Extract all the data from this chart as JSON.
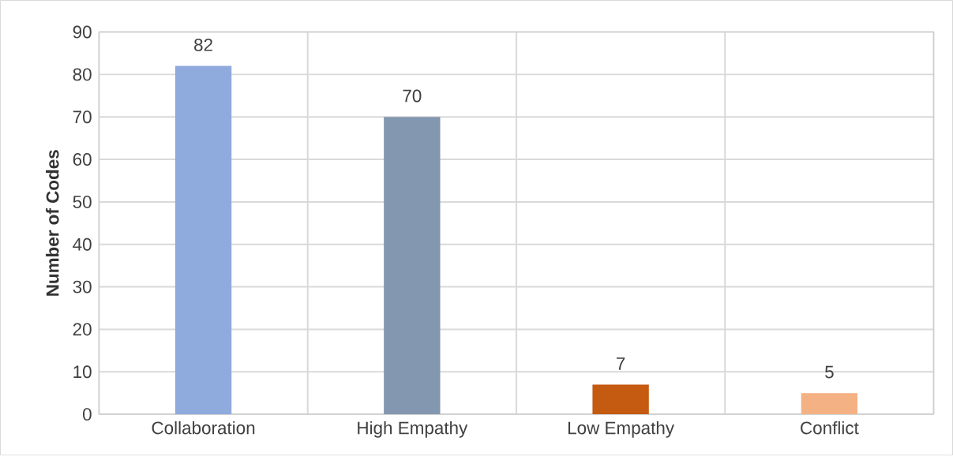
{
  "chart_data": {
    "type": "bar",
    "ylabel": "Number of Codes",
    "categories": [
      "Collaboration",
      "High Empathy",
      "Low Empathy",
      "Conflict"
    ],
    "values": [
      82,
      70,
      7,
      5
    ],
    "colors": [
      "#8faadc",
      "#8497b0",
      "#c55a11",
      "#f4b183"
    ],
    "ylim": [
      0,
      90
    ],
    "yticks": [
      0,
      10,
      20,
      30,
      40,
      50,
      60,
      70,
      80,
      90
    ],
    "grid": true,
    "data_labels": true
  }
}
